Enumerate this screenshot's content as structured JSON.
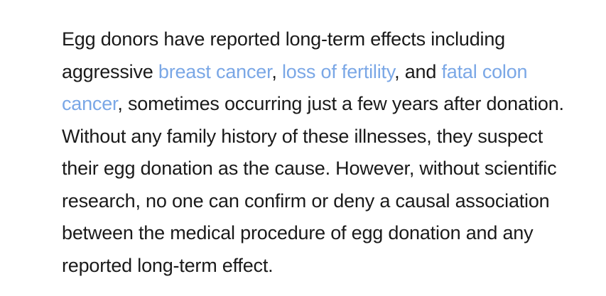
{
  "article": {
    "text_1": "Egg donors have reported long-term effects including aggressive ",
    "link_1": "breast cancer",
    "text_2": ", ",
    "link_2": "loss of fertility",
    "text_3": ", and ",
    "link_3": "fatal colon cancer",
    "text_4": ", sometimes occurring just a few years after donation. Without any family history of these illnesses, they suspect their egg donation as the cause. However, without scientific research, no one can confirm or deny a causal association between the medical procedure of egg donation and any reported long-term effect.",
    "link_color": "#7aa7e6",
    "text_color": "#1a1a1a"
  }
}
